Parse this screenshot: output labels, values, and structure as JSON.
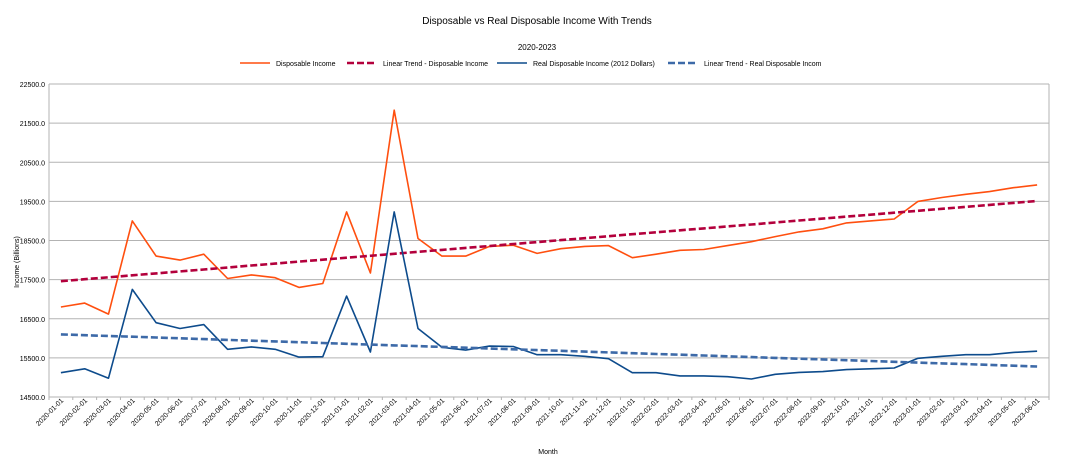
{
  "chart_data": {
    "type": "line",
    "title": "Disposable vs Real Disposable Income With Trends",
    "subtitle": "2020-2023",
    "xlabel": "Month",
    "ylabel": "Income (Billions)",
    "ylim": [
      14500,
      22500
    ],
    "yticks": [
      14500,
      15500,
      16500,
      17500,
      18500,
      19500,
      20500,
      21500,
      22500
    ],
    "ytick_labels": [
      "14500.0",
      "15500.0",
      "16500.0",
      "17500.0",
      "18500.0",
      "19500.0",
      "20500.0",
      "21500.0",
      "22500.0"
    ],
    "grid": true,
    "legend_position": "top",
    "categories": [
      "2020-01-01",
      "2020-02-01",
      "2020-03-01",
      "2020-04-01",
      "2020-05-01",
      "2020-06-01",
      "2020-07-01",
      "2020-08-01",
      "2020-09-01",
      "2020-10-01",
      "2020-11-01",
      "2020-12-01",
      "2021-01-01",
      "2021-02-01",
      "2021-03-01",
      "2021-04-01",
      "2021-05-01",
      "2021-06-01",
      "2021-07-01",
      "2021-08-01",
      "2021-09-01",
      "2021-10-01",
      "2021-11-01",
      "2021-12-01",
      "2022-01-01",
      "2022-02-01",
      "2022-03-01",
      "2022-04-01",
      "2022-05-01",
      "2022-06-01",
      "2022-07-01",
      "2022-08-01",
      "2022-09-01",
      "2022-10-01",
      "2022-11-01",
      "2022-12-01",
      "2023-01-01",
      "2023-02-01",
      "2023-03-01",
      "2023-04-01",
      "2023-05-01",
      "2023-06-01"
    ],
    "series": [
      {
        "name": "Disposable Income",
        "color": "#ff4f0f",
        "style": "solid",
        "values": [
          16800,
          16900,
          16620,
          19000,
          18100,
          18000,
          18150,
          17530,
          17620,
          17550,
          17300,
          17400,
          19230,
          17670,
          21830,
          18550,
          18100,
          18100,
          18350,
          18380,
          18170,
          18290,
          18350,
          18370,
          18060,
          18150,
          18250,
          18270,
          18370,
          18470,
          18600,
          18720,
          18800,
          18950,
          19000,
          19050,
          19500,
          19600,
          19680,
          19750,
          19850,
          19920
        ]
      },
      {
        "name": "Linear Trend - Disposable Income",
        "color": "#b3003c",
        "style": "dashed",
        "values": [
          17460,
          17510,
          17560,
          17610,
          17660,
          17710,
          17760,
          17810,
          17860,
          17910,
          17960,
          18010,
          18060,
          18110,
          18160,
          18210,
          18260,
          18310,
          18360,
          18410,
          18460,
          18510,
          18560,
          18610,
          18660,
          18710,
          18760,
          18810,
          18860,
          18910,
          18960,
          19010,
          19060,
          19110,
          19160,
          19210,
          19260,
          19310,
          19360,
          19410,
          19460,
          19510
        ]
      },
      {
        "name": "Real Disposable Income (2012 Dollars)",
        "color": "#0d4b8c",
        "style": "solid",
        "values": [
          15120,
          15220,
          14980,
          17250,
          16400,
          16250,
          16350,
          15720,
          15780,
          15720,
          15520,
          15530,
          17080,
          15650,
          19230,
          16250,
          15770,
          15700,
          15800,
          15790,
          15580,
          15580,
          15540,
          15480,
          15120,
          15120,
          15040,
          15040,
          15020,
          14960,
          15080,
          15130,
          15150,
          15200,
          15220,
          15240,
          15490,
          15540,
          15580,
          15580,
          15640,
          15670
        ]
      },
      {
        "name": "Linear Trend - Real Disposable Incom",
        "color": "#3d6aa8",
        "style": "dashed",
        "values": [
          16100,
          16080,
          16060,
          16040,
          16020,
          16000,
          15980,
          15960,
          15940,
          15920,
          15900,
          15880,
          15860,
          15840,
          15820,
          15800,
          15780,
          15760,
          15740,
          15720,
          15700,
          15680,
          15660,
          15640,
          15620,
          15600,
          15580,
          15560,
          15540,
          15520,
          15500,
          15480,
          15460,
          15440,
          15420,
          15400,
          15380,
          15360,
          15340,
          15320,
          15300,
          15280
        ]
      }
    ]
  }
}
